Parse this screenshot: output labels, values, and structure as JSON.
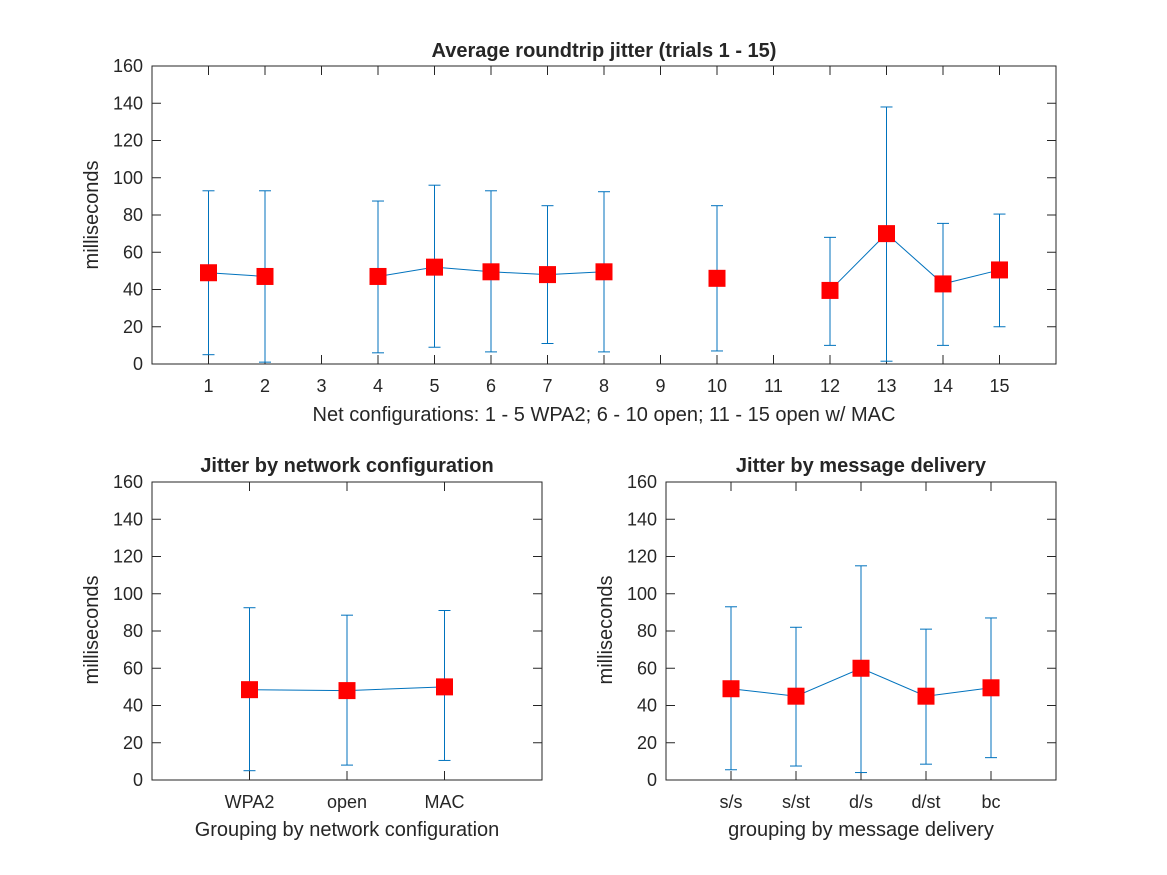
{
  "chart_data": [
    {
      "type": "line",
      "title": "Average roundtrip jitter (trials 1 - 15)",
      "xlabel": "Net configurations: 1 - 5 WPA2; 6 - 10 open; 11 - 15 open w/ MAC",
      "ylabel": "milliseconds",
      "xlim": [
        0,
        16
      ],
      "ylim": [
        0,
        160
      ],
      "yticks": [
        0,
        20,
        40,
        60,
        80,
        100,
        120,
        140,
        160
      ],
      "categories": [
        "1",
        "2",
        "3",
        "4",
        "5",
        "6",
        "7",
        "8",
        "9",
        "10",
        "11",
        "12",
        "13",
        "14",
        "15"
      ],
      "values": [
        49,
        47,
        null,
        47,
        52,
        49.5,
        48,
        49.5,
        null,
        46,
        null,
        39.5,
        70,
        43,
        50.5
      ],
      "err_low": [
        5,
        1,
        null,
        6,
        9,
        6.5,
        11,
        6.5,
        null,
        7,
        null,
        10,
        1.5,
        10,
        20
      ],
      "err_high": [
        93,
        93,
        null,
        87.5,
        96,
        93,
        85,
        92.5,
        null,
        85,
        null,
        68,
        138,
        75.5,
        80.5
      ],
      "line_color": "#0072BD",
      "marker_color": "#FF0000",
      "grid": false
    },
    {
      "type": "line",
      "title": "Jitter by network configuration",
      "xlabel": "Grouping by network configuration",
      "ylabel": "milliseconds",
      "xlim": [
        0,
        4
      ],
      "ylim": [
        0,
        160
      ],
      "yticks": [
        0,
        20,
        40,
        60,
        80,
        100,
        120,
        140,
        160
      ],
      "categories": [
        "WPA2",
        "open",
        "MAC"
      ],
      "values": [
        48.5,
        48,
        50
      ],
      "err_low": [
        5,
        8,
        10.5
      ],
      "err_high": [
        92.5,
        88.5,
        91
      ],
      "line_color": "#0072BD",
      "marker_color": "#FF0000",
      "grid": false
    },
    {
      "type": "line",
      "title": "Jitter by message delivery",
      "xlabel": "grouping by message delivery",
      "ylabel": "milliseconds",
      "xlim": [
        0,
        6
      ],
      "ylim": [
        0,
        160
      ],
      "yticks": [
        0,
        20,
        40,
        60,
        80,
        100,
        120,
        140,
        160
      ],
      "categories": [
        "s/s",
        "s/st",
        "d/s",
        "d/st",
        "bc"
      ],
      "values": [
        49,
        45,
        60,
        45,
        49.5
      ],
      "err_low": [
        5.5,
        7.5,
        4,
        8.5,
        12
      ],
      "err_high": [
        93,
        82,
        115,
        81,
        87
      ],
      "line_color": "#0072BD",
      "marker_color": "#FF0000",
      "grid": false
    }
  ]
}
